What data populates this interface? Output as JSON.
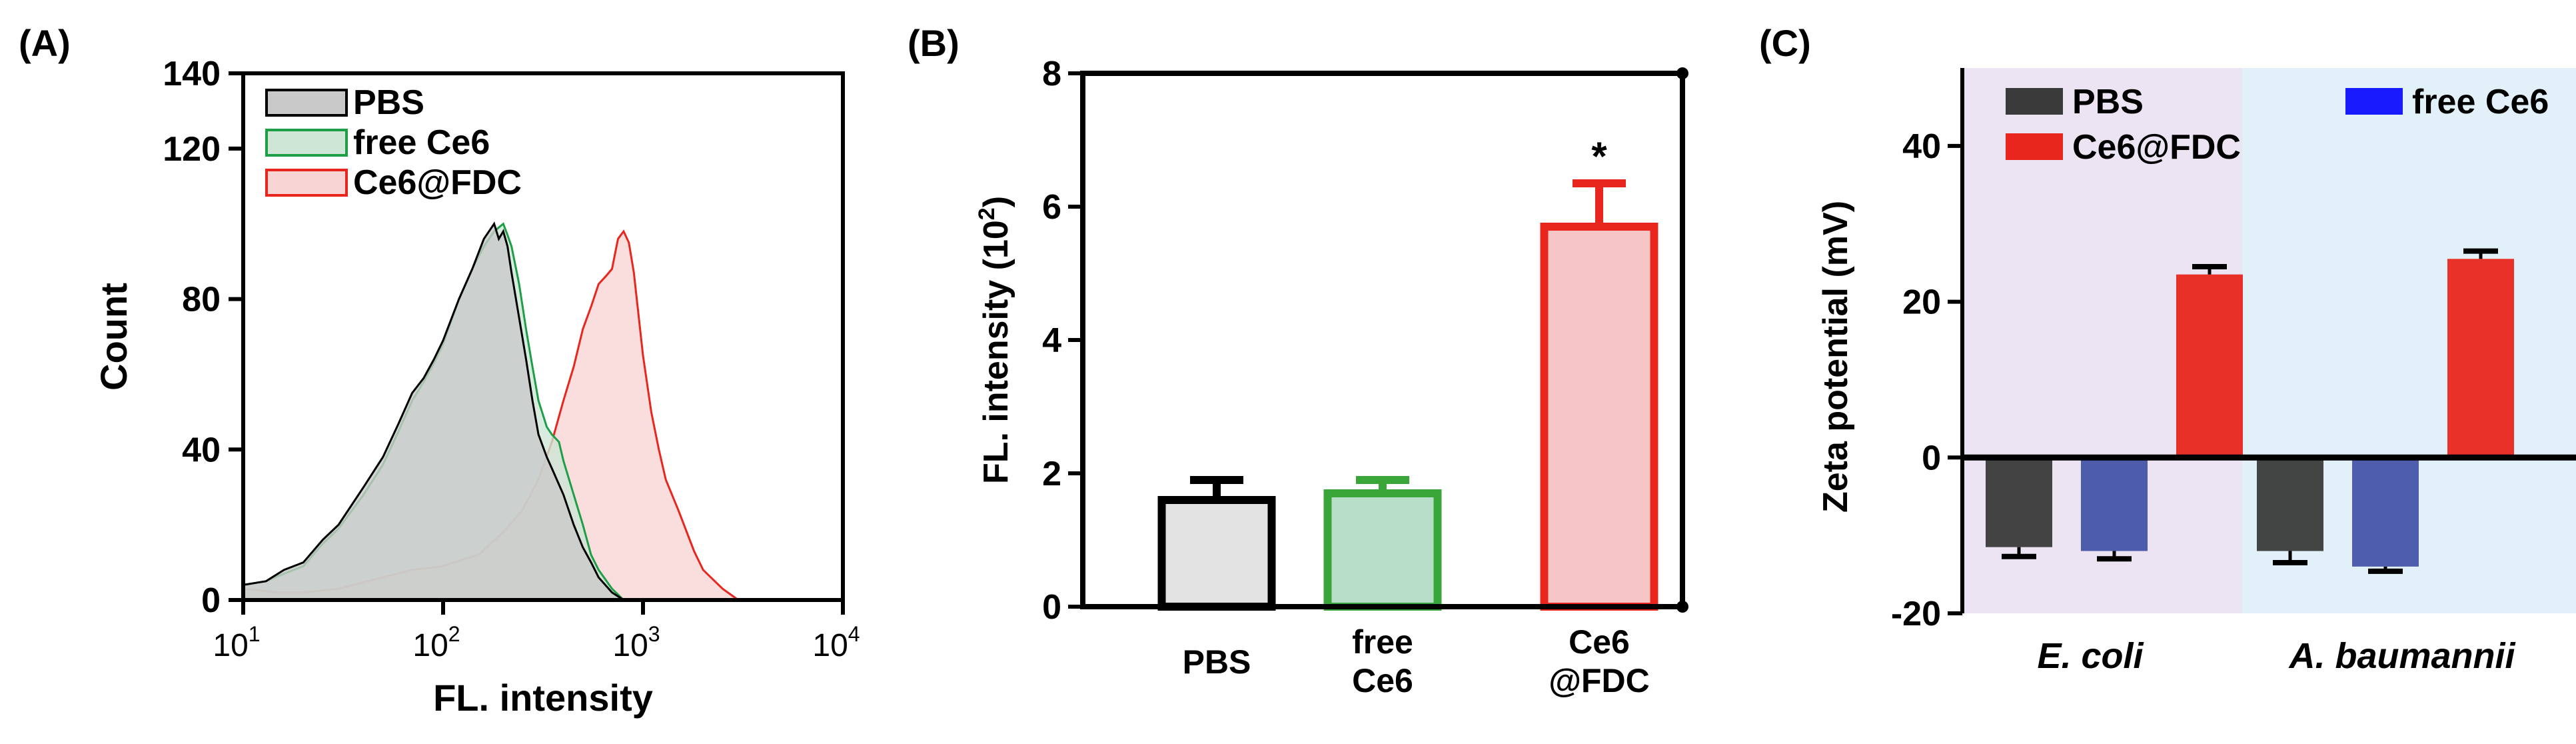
{
  "figure": {
    "panel_a_label": "(A)",
    "panel_b_label": "(B)",
    "panel_c_label": "(C)"
  },
  "chart_data": [
    {
      "panel": "A",
      "type": "area",
      "xlabel": "FL. intensity",
      "ylabel": "Count",
      "xscale": "log",
      "xlim": [
        10,
        10000
      ],
      "ylim": [
        0,
        140
      ],
      "ytick_labels": [
        "0",
        "40",
        "80",
        "120",
        "140"
      ],
      "xtick_labels": [
        {
          "base": "10",
          "exp": "1"
        },
        {
          "base": "10",
          "exp": "2"
        },
        {
          "base": "10",
          "exp": "3"
        },
        {
          "base": "10",
          "exp": "4"
        }
      ],
      "legend": [
        "PBS",
        "free Ce6",
        "Ce6@FDC"
      ],
      "legend_position": "top-left",
      "series": [
        {
          "name": "PBS",
          "line_color": "#000000",
          "fill_color": "#c9c9c9",
          "x": [
            10,
            13,
            16,
            20,
            25,
            30,
            40,
            50,
            60,
            70,
            80,
            90,
            100,
            120,
            140,
            160,
            180,
            190,
            200,
            210,
            220,
            240,
            260,
            280,
            300,
            330,
            350,
            400,
            450,
            500,
            550,
            600,
            700,
            800
          ],
          "y": [
            4,
            5,
            8,
            10,
            16,
            20,
            30,
            38,
            47,
            55,
            59,
            64,
            69,
            80,
            88,
            96,
            100,
            96,
            98,
            94,
            87,
            75,
            64,
            53,
            44,
            38,
            35,
            28,
            20,
            14,
            10,
            6,
            2,
            0
          ]
        },
        {
          "name": "free Ce6",
          "line_color": "#1e9e47",
          "fill_color": "#cde6d6",
          "x": [
            10,
            13,
            16,
            20,
            25,
            30,
            40,
            50,
            60,
            70,
            80,
            90,
            100,
            120,
            140,
            160,
            180,
            200,
            210,
            220,
            240,
            260,
            280,
            300,
            330,
            350,
            380,
            400,
            450,
            500,
            550,
            600,
            700,
            800
          ],
          "y": [
            4,
            5,
            7,
            9,
            15,
            19,
            28,
            36,
            45,
            53,
            58,
            63,
            68,
            80,
            88,
            94,
            98,
            100,
            97,
            94,
            84,
            72,
            62,
            53,
            46,
            44,
            42,
            37,
            28,
            20,
            12,
            8,
            3,
            0
          ]
        },
        {
          "name": "Ce6@FDC",
          "line_color": "#e8261e",
          "fill_color": "#f9d4d4",
          "x": [
            10,
            15,
            20,
            30,
            50,
            70,
            100,
            130,
            150,
            200,
            250,
            300,
            350,
            400,
            450,
            500,
            550,
            600,
            650,
            700,
            750,
            800,
            850,
            900,
            1000,
            1100,
            1200,
            1300,
            1500,
            1800,
            2000,
            2500,
            3000
          ],
          "y": [
            3,
            2,
            2,
            3,
            6,
            8,
            9,
            11,
            12,
            18,
            24,
            32,
            42,
            53,
            62,
            72,
            78,
            84,
            86,
            88,
            96,
            98,
            95,
            87,
            65,
            50,
            40,
            32,
            24,
            13,
            8,
            3,
            0
          ]
        }
      ]
    },
    {
      "panel": "B",
      "type": "bar",
      "ylabel": "FL. intensity (10",
      "ylabel_sup": "2",
      "ylabel_close": ")",
      "ylim": [
        0,
        8
      ],
      "ytick_labels": [
        "0",
        "2",
        "4",
        "6",
        "8"
      ],
      "categories": [
        {
          "line1": "PBS",
          "line2": ""
        },
        {
          "line1": "free",
          "line2": "Ce6"
        },
        {
          "line1": "Ce6",
          "line2": "@FDC"
        }
      ],
      "values": [
        1.6,
        1.7,
        5.7
      ],
      "errors": [
        0.3,
        0.2,
        0.65
      ],
      "edge_colors": [
        "#000000",
        "#3aa63a",
        "#e8261e"
      ],
      "fill_colors": [
        "#e3e3e3",
        "#b7dec9",
        "#f6c5c5"
      ],
      "annotation": "*"
    },
    {
      "panel": "C",
      "type": "bar",
      "ylabel": "Zeta potential (mV)",
      "ylim": [
        -20,
        50
      ],
      "ytick_labels": [
        "-20",
        "0",
        "20",
        "40"
      ],
      "categories": [
        "E. coli",
        "A. baumannii"
      ],
      "legend": [
        "PBS",
        "free Ce6",
        "Ce6@FDC"
      ],
      "legend_position": "top-left",
      "legend_colors": [
        "#3a3a3a",
        "#1a1aff",
        "#e8261e"
      ],
      "background_colors": [
        "#ece4f2",
        "#e2f0f9"
      ],
      "series": [
        {
          "name": "PBS",
          "color": "#3a3a3a",
          "values": [
            -11.5,
            -12
          ],
          "errors": [
            1.2,
            1.5
          ]
        },
        {
          "name": "free Ce6",
          "color": "#4654a8",
          "values": [
            -12,
            -14
          ],
          "errors": [
            1.0,
            0.6
          ]
        },
        {
          "name": "Ce6@FDC",
          "color": "#e8261e",
          "values": [
            23.5,
            25.5
          ],
          "errors": [
            1.0,
            1.0
          ]
        }
      ]
    }
  ]
}
